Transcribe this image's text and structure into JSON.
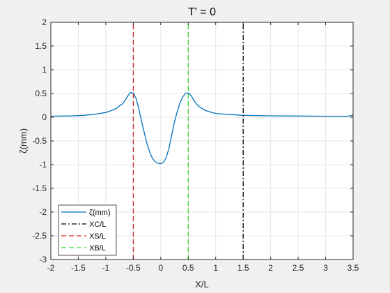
{
  "chart_data": {
    "type": "line",
    "title": "T' = 0",
    "xlabel": "X/L",
    "ylabel": "ζ(mm)",
    "xlim": [
      -2,
      3.5
    ],
    "ylim": [
      -3,
      2
    ],
    "xticks": [
      -2,
      -1.5,
      -1,
      -0.5,
      0,
      0.5,
      1,
      1.5,
      2,
      2.5,
      3,
      3.5
    ],
    "xtick_labels": [
      "-2",
      "-1.5",
      "-1",
      "-0.5",
      "0",
      "0.5",
      "1",
      "1.5",
      "2",
      "2.5",
      "3",
      "3.5"
    ],
    "yticks": [
      2,
      1.5,
      1,
      0.5,
      0,
      -0.5,
      -1,
      -1.5,
      -2,
      -2.5,
      -3
    ],
    "ytick_labels": [
      "2",
      "1.5",
      "1",
      "0.5",
      "0",
      "-0.5",
      "-1",
      "-1.5",
      "-2",
      "-2.5",
      "-3"
    ],
    "grid": true,
    "legend_position": "bottom-left",
    "series": [
      {
        "name": "ζ(mm)",
        "color": "#0072BD",
        "style": "solid",
        "x": [
          -2,
          -1.8,
          -1.6,
          -1.4,
          -1.2,
          -1.0,
          -0.9,
          -0.8,
          -0.75,
          -0.7,
          -0.65,
          -0.6,
          -0.55,
          -0.5,
          -0.45,
          -0.4,
          -0.35,
          -0.3,
          -0.25,
          -0.2,
          -0.15,
          -0.1,
          -0.05,
          0,
          0.05,
          0.1,
          0.15,
          0.2,
          0.25,
          0.3,
          0.35,
          0.4,
          0.45,
          0.5,
          0.55,
          0.6,
          0.65,
          0.7,
          0.8,
          0.9,
          1.0,
          1.2,
          1.5,
          2.0,
          2.5,
          3.0,
          3.4,
          3.5
        ],
        "y": [
          0.02,
          0.025,
          0.03,
          0.04,
          0.06,
          0.1,
          0.14,
          0.19,
          0.24,
          0.28,
          0.35,
          0.45,
          0.52,
          0.51,
          0.4,
          0.18,
          -0.08,
          -0.32,
          -0.56,
          -0.74,
          -0.87,
          -0.94,
          -0.97,
          -0.98,
          -0.95,
          -0.85,
          -0.65,
          -0.38,
          -0.1,
          0.12,
          0.3,
          0.43,
          0.5,
          0.51,
          0.46,
          0.36,
          0.28,
          0.22,
          0.15,
          0.11,
          0.08,
          0.06,
          0.04,
          0.03,
          0.025,
          0.02,
          0.02,
          0.04
        ]
      },
      {
        "name": "XC/L",
        "color": "#000000",
        "style": "dash-dot",
        "x": [
          1.5,
          1.5
        ],
        "y": [
          -3,
          2
        ]
      },
      {
        "name": "XS/L",
        "color": "#D92020",
        "style": "dashed",
        "x": [
          -0.5,
          -0.5
        ],
        "y": [
          -3,
          2
        ]
      },
      {
        "name": "XB/L",
        "color": "#33DD33",
        "style": "dashed",
        "x": [
          0.5,
          0.5
        ],
        "y": [
          -3,
          2
        ]
      }
    ]
  }
}
